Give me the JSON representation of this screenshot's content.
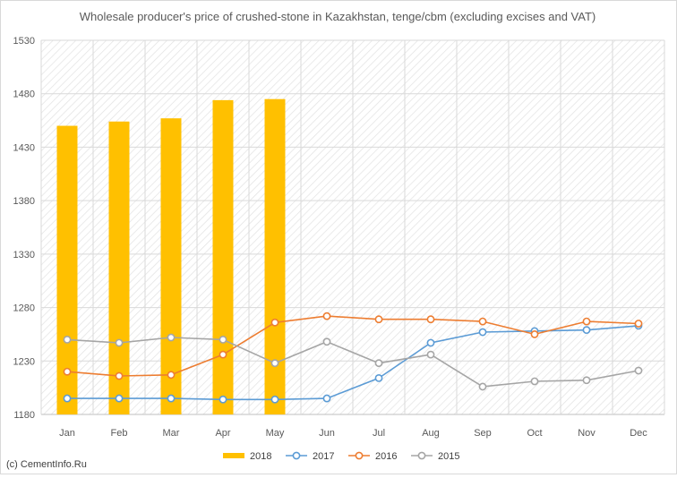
{
  "chart_data": {
    "type": "bar",
    "title": "Wholesale producer's price of crushed-stone in Kazakhstan, tenge/cbm (excluding excises and VAT)",
    "xlabel": "",
    "ylabel": "",
    "categories": [
      "Jan",
      "Feb",
      "Mar",
      "Apr",
      "May",
      "Jun",
      "Jul",
      "Aug",
      "Sep",
      "Oct",
      "Nov",
      "Dec"
    ],
    "ylim": [
      1180,
      1530
    ],
    "yticks": [
      "1530",
      "1480",
      "1430",
      "1380",
      "1330",
      "1280",
      "1230",
      "1180"
    ],
    "grid": true,
    "legend_position": "bottom",
    "series": [
      {
        "name": "2018",
        "type": "bar",
        "color": "#ffc000",
        "values": [
          1450,
          1454,
          1457,
          1474,
          1475,
          null,
          null,
          null,
          null,
          null,
          null,
          null
        ]
      },
      {
        "name": "2017",
        "type": "line",
        "color": "#5b9bd5",
        "values": [
          1195,
          1195,
          1195,
          1194,
          1194,
          1195,
          1214,
          1247,
          1257,
          1258,
          1259,
          1263
        ]
      },
      {
        "name": "2016",
        "type": "line",
        "color": "#ed7d31",
        "values": [
          1220,
          1216,
          1217,
          1236,
          1266,
          1272,
          1269,
          1269,
          1267,
          1255,
          1267,
          1265
        ]
      },
      {
        "name": "2015",
        "type": "line",
        "color": "#a5a5a5",
        "values": [
          1250,
          1247,
          1252,
          1250,
          1228,
          1248,
          1228,
          1236,
          1206,
          1211,
          1212,
          1221
        ]
      }
    ]
  },
  "footer": {
    "source": "(c) CementInfo.Ru"
  }
}
